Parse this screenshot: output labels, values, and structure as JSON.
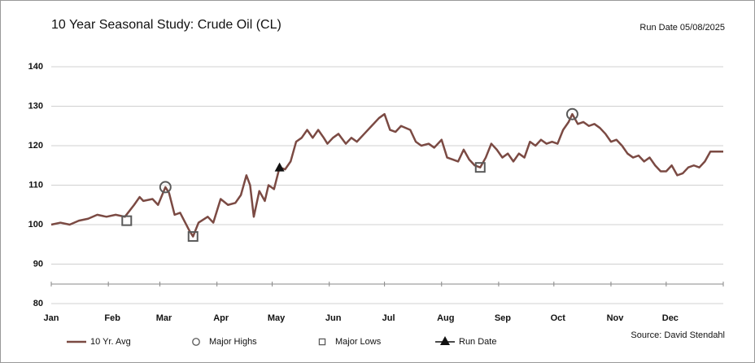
{
  "chart_data": {
    "type": "line",
    "title": "10 Year Seasonal Study: Crude Oil (CL)",
    "annotation": "Run Date  05/08/2025",
    "source": "Source: David Stendahl",
    "xlim": [
      0,
      365
    ],
    "xticks": [
      {
        "value": 0,
        "label": "Jan"
      },
      {
        "value": 31,
        "label": "Feb"
      },
      {
        "value": 59,
        "label": "Mar"
      },
      {
        "value": 90,
        "label": "Apr"
      },
      {
        "value": 120,
        "label": "May"
      },
      {
        "value": 151,
        "label": "Jun"
      },
      {
        "value": 181,
        "label": "Jul"
      },
      {
        "value": 212,
        "label": "Aug"
      },
      {
        "value": 243,
        "label": "Sep"
      },
      {
        "value": 273,
        "label": "Oct"
      },
      {
        "value": 304,
        "label": "Nov"
      },
      {
        "value": 334,
        "label": "Dec"
      }
    ],
    "ylim": [
      80,
      140
    ],
    "yticks": [
      80,
      90,
      100,
      110,
      120,
      130,
      140
    ],
    "grid": true,
    "legend": "bottom",
    "series": [
      {
        "name": "10 Yr. Avg",
        "color": "#7b4a43",
        "marker": "line",
        "x": [
          0,
          5,
          10,
          15,
          20,
          25,
          30,
          35,
          40,
          45,
          48,
          50,
          55,
          58,
          62,
          64,
          67,
          70,
          75,
          77,
          80,
          85,
          88,
          92,
          96,
          100,
          103,
          106,
          108,
          110,
          113,
          116,
          118,
          121,
          124,
          127,
          130,
          133,
          136,
          139,
          142,
          145,
          148,
          150,
          153,
          156,
          160,
          163,
          166,
          170,
          174,
          178,
          181,
          184,
          187,
          190,
          195,
          198,
          201,
          205,
          208,
          212,
          215,
          218,
          221,
          224,
          227,
          230,
          233,
          236,
          239,
          242,
          245,
          248,
          251,
          254,
          257,
          260,
          263,
          266,
          269,
          272,
          275,
          278,
          281,
          283,
          286,
          289,
          292,
          295,
          298,
          301,
          304,
          307,
          310,
          313,
          316,
          319,
          322,
          325,
          328,
          331,
          334,
          337,
          340,
          343,
          346,
          349,
          352,
          355,
          358,
          361,
          365
        ],
        "values": [
          100,
          100.5,
          100,
          101,
          101.5,
          102.5,
          102,
          102.5,
          102,
          105,
          107,
          106,
          106.5,
          105,
          109.5,
          108,
          102.5,
          103,
          98.5,
          97,
          100.5,
          102,
          100.5,
          106.5,
          105,
          105.5,
          107.5,
          112.5,
          110,
          102,
          108.5,
          106,
          110,
          109,
          114.5,
          114,
          116,
          121,
          122,
          124,
          122,
          124,
          122,
          120.5,
          122,
          123,
          120.5,
          122,
          121,
          123,
          125,
          127,
          128,
          124,
          123.5,
          125,
          124,
          121,
          120,
          120.5,
          119.5,
          121.5,
          117,
          116.5,
          116,
          119,
          116.5,
          115,
          114.5,
          117,
          120.5,
          119,
          117,
          118,
          116,
          118,
          117,
          121,
          120,
          121.5,
          120.5,
          121,
          120.5,
          124,
          126,
          128,
          125.5,
          126,
          125,
          125.5,
          124.5,
          123,
          121,
          121.5,
          120,
          118,
          117,
          117.5,
          116,
          117,
          115,
          113.5,
          113.5,
          115,
          112.5,
          113,
          114.5,
          115,
          114.5,
          116,
          118.5,
          118.5,
          118.5
        ]
      },
      {
        "name": "Major Highs",
        "color": "#5a5a5a",
        "marker": "circle",
        "x": [
          62,
          283
        ],
        "values": [
          109.5,
          128
        ]
      },
      {
        "name": "Major Lows",
        "color": "#5a5a5a",
        "marker": "square",
        "x": [
          41,
          77,
          233
        ],
        "values": [
          101,
          97,
          114.5
        ]
      },
      {
        "name": "Run Date",
        "color": "#111111",
        "marker": "triangle",
        "x": [
          124
        ],
        "values": [
          114.5
        ]
      }
    ]
  }
}
